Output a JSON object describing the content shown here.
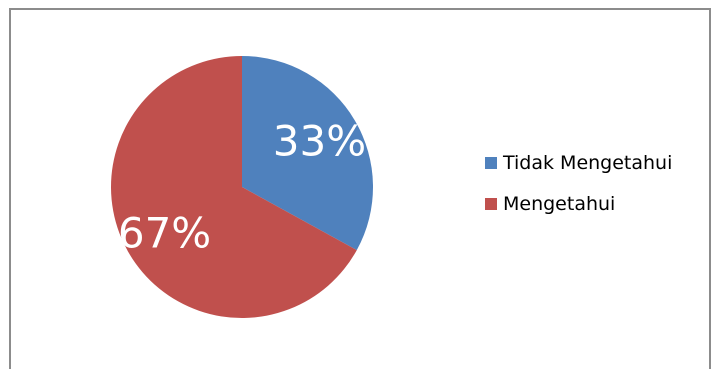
{
  "chart_data": {
    "type": "pie",
    "title": "",
    "slices": [
      {
        "label": "Tidak Mengetahui",
        "value": 33,
        "display": "33%",
        "color": "#4F81BD"
      },
      {
        "label": "Mengetahui",
        "value": 67,
        "display": "67%",
        "color": "#C0504D"
      }
    ],
    "start_angle": "12 o'clock",
    "direction": "clockwise",
    "legend": {
      "placement": "right"
    }
  }
}
